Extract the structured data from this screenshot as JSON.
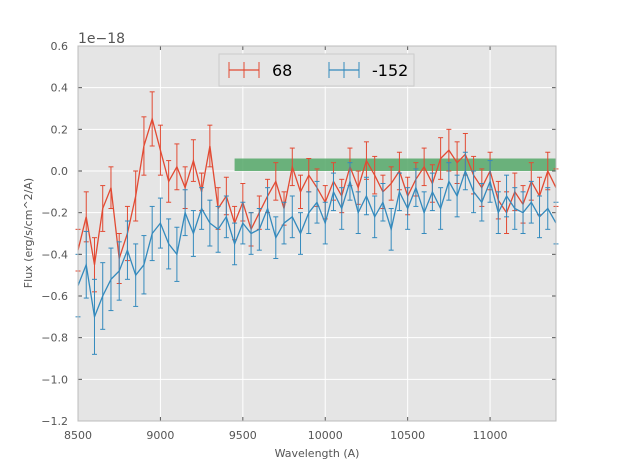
{
  "chart_data": {
    "type": "line",
    "style": "errorbar",
    "xlabel": "Wavelength (A)",
    "ylabel": "Flux (erg/s/cm^2/A)",
    "offset_text": "1e−18",
    "xlim": [
      8500,
      11400
    ],
    "ylim": [
      -1.2,
      0.6
    ],
    "xticks": [
      8500,
      9000,
      9500,
      10000,
      10500,
      11000
    ],
    "xtick_labels": [
      "8500",
      "9000",
      "9500",
      "10000",
      "10500",
      "11000"
    ],
    "yticks": [
      0.6,
      0.4,
      0.2,
      0.0,
      -0.2,
      -0.4,
      -0.6,
      -0.8,
      -1.0,
      -1.2
    ],
    "ytick_labels": [
      "0.6",
      "0.4",
      "0.2",
      "0.0",
      "−0.2",
      "−0.4",
      "−0.6",
      "−0.8",
      "−1.0",
      "−1.2"
    ],
    "grid": true,
    "legend_position": "top-center",
    "band": {
      "x0": 9450,
      "x1": 11400,
      "y0": 0.0,
      "y1": 0.06,
      "color": "#55a868"
    },
    "series": [
      {
        "name": "68",
        "color": "#e24a33",
        "x": [
          8500,
          8550,
          8600,
          8650,
          8700,
          8750,
          8800,
          8850,
          8900,
          8950,
          9000,
          9050,
          9100,
          9150,
          9200,
          9250,
          9300,
          9350,
          9400,
          9450,
          9500,
          9550,
          9600,
          9650,
          9700,
          9750,
          9800,
          9850,
          9900,
          9950,
          10000,
          10050,
          10100,
          10150,
          10200,
          10250,
          10300,
          10350,
          10400,
          10450,
          10500,
          10550,
          10600,
          10650,
          10700,
          10750,
          10800,
          10850,
          10900,
          10950,
          11000,
          11050,
          11100,
          11150,
          11200,
          11250,
          11300,
          11350,
          11400
        ],
        "y": [
          -0.38,
          -0.22,
          -0.45,
          -0.18,
          -0.08,
          -0.42,
          -0.3,
          -0.12,
          0.12,
          0.25,
          0.1,
          -0.05,
          0.02,
          -0.08,
          0.05,
          -0.1,
          0.12,
          -0.18,
          -0.12,
          -0.25,
          -0.15,
          -0.28,
          -0.2,
          -0.12,
          -0.05,
          -0.18,
          0.02,
          -0.1,
          -0.02,
          -0.08,
          -0.15,
          -0.05,
          -0.12,
          0.02,
          -0.08,
          0.05,
          -0.02,
          -0.1,
          -0.06,
          0.0,
          -0.12,
          -0.04,
          0.02,
          -0.06,
          0.06,
          0.1,
          0.04,
          0.08,
          -0.02,
          -0.08,
          0.0,
          -0.14,
          -0.2,
          -0.1,
          -0.16,
          -0.05,
          -0.12,
          0.0,
          -0.08
        ],
        "err": [
          0.1,
          0.12,
          0.13,
          0.11,
          0.1,
          0.12,
          0.13,
          0.12,
          0.14,
          0.13,
          0.12,
          0.1,
          0.11,
          0.1,
          0.1,
          0.09,
          0.1,
          0.1,
          0.09,
          0.08,
          0.09,
          0.08,
          0.08,
          0.08,
          0.09,
          0.08,
          0.09,
          0.08,
          0.08,
          0.09,
          0.08,
          0.09,
          0.08,
          0.09,
          0.08,
          0.09,
          0.09,
          0.08,
          0.08,
          0.09,
          0.09,
          0.08,
          0.09,
          0.09,
          0.1,
          0.1,
          0.1,
          0.1,
          0.09,
          0.09,
          0.09,
          0.09,
          0.1,
          0.09,
          0.09,
          0.09,
          0.09,
          0.09,
          0.09
        ]
      },
      {
        "name": "-152",
        "color": "#348abd",
        "x": [
          8500,
          8550,
          8600,
          8650,
          8700,
          8750,
          8800,
          8850,
          8900,
          8950,
          9000,
          9050,
          9100,
          9150,
          9200,
          9250,
          9300,
          9350,
          9400,
          9450,
          9500,
          9550,
          9600,
          9650,
          9700,
          9750,
          9800,
          9850,
          9900,
          9950,
          10000,
          10050,
          10100,
          10150,
          10200,
          10250,
          10300,
          10350,
          10400,
          10450,
          10500,
          10550,
          10600,
          10650,
          10700,
          10750,
          10800,
          10850,
          10900,
          10950,
          11000,
          11050,
          11100,
          11150,
          11200,
          11250,
          11300,
          11350,
          11400
        ],
        "y": [
          -0.55,
          -0.45,
          -0.7,
          -0.6,
          -0.52,
          -0.48,
          -0.38,
          -0.5,
          -0.45,
          -0.3,
          -0.25,
          -0.35,
          -0.4,
          -0.2,
          -0.3,
          -0.18,
          -0.25,
          -0.28,
          -0.22,
          -0.35,
          -0.25,
          -0.3,
          -0.28,
          -0.18,
          -0.32,
          -0.25,
          -0.22,
          -0.3,
          -0.2,
          -0.15,
          -0.25,
          -0.1,
          -0.18,
          -0.05,
          -0.2,
          -0.12,
          -0.22,
          -0.15,
          -0.28,
          -0.1,
          -0.18,
          -0.08,
          -0.2,
          -0.1,
          -0.18,
          -0.05,
          -0.12,
          0.0,
          -0.1,
          -0.15,
          -0.05,
          -0.2,
          -0.12,
          -0.18,
          -0.2,
          -0.15,
          -0.22,
          -0.18,
          -0.25
        ],
        "err": [
          0.15,
          0.16,
          0.18,
          0.16,
          0.15,
          0.14,
          0.14,
          0.15,
          0.14,
          0.13,
          0.12,
          0.12,
          0.13,
          0.11,
          0.11,
          0.1,
          0.11,
          0.11,
          0.1,
          0.1,
          0.1,
          0.1,
          0.1,
          0.1,
          0.1,
          0.1,
          0.1,
          0.1,
          0.1,
          0.1,
          0.1,
          0.09,
          0.1,
          0.09,
          0.1,
          0.09,
          0.1,
          0.09,
          0.1,
          0.09,
          0.1,
          0.09,
          0.1,
          0.09,
          0.1,
          0.09,
          0.1,
          0.09,
          0.1,
          0.09,
          0.1,
          0.1,
          0.1,
          0.1,
          0.1,
          0.1,
          0.1,
          0.1,
          0.1
        ]
      }
    ]
  }
}
